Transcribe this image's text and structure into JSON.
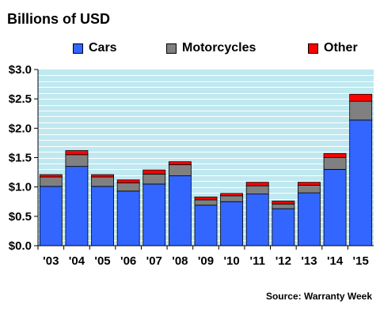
{
  "title": "Billions of USD",
  "source": "Source: Warranty Week",
  "colors": {
    "cars": "#3366ff",
    "motorcycles": "#808080",
    "other": "#ff0000",
    "plot_bg": "#c0e8f0",
    "grid": "#ffffff"
  },
  "chart_data": {
    "type": "bar",
    "stacked": true,
    "categories": [
      "'03",
      "'04",
      "'05",
      "'06",
      "'07",
      "'08",
      "'09",
      "'10",
      "'11",
      "'12",
      "'13",
      "'14",
      "'15"
    ],
    "series": [
      {
        "name": "Cars",
        "color": "#3366ff",
        "values": [
          1.01,
          1.35,
          1.01,
          0.93,
          1.05,
          1.19,
          0.69,
          0.75,
          0.88,
          0.63,
          0.9,
          1.3,
          2.14
        ]
      },
      {
        "name": "Motorcycles",
        "color": "#808080",
        "values": [
          0.16,
          0.2,
          0.16,
          0.14,
          0.17,
          0.19,
          0.09,
          0.1,
          0.14,
          0.08,
          0.13,
          0.2,
          0.32
        ]
      },
      {
        "name": "Other",
        "color": "#ff0000",
        "values": [
          0.04,
          0.07,
          0.04,
          0.05,
          0.07,
          0.05,
          0.05,
          0.04,
          0.06,
          0.05,
          0.05,
          0.07,
          0.12
        ]
      }
    ],
    "yticks": [
      "$0.0",
      "$0.5",
      "$1.0",
      "$1.5",
      "$2.0",
      "$2.5",
      "$3.0"
    ],
    "ylim": [
      0,
      3.0
    ],
    "grid": true,
    "legend_position": "top"
  }
}
